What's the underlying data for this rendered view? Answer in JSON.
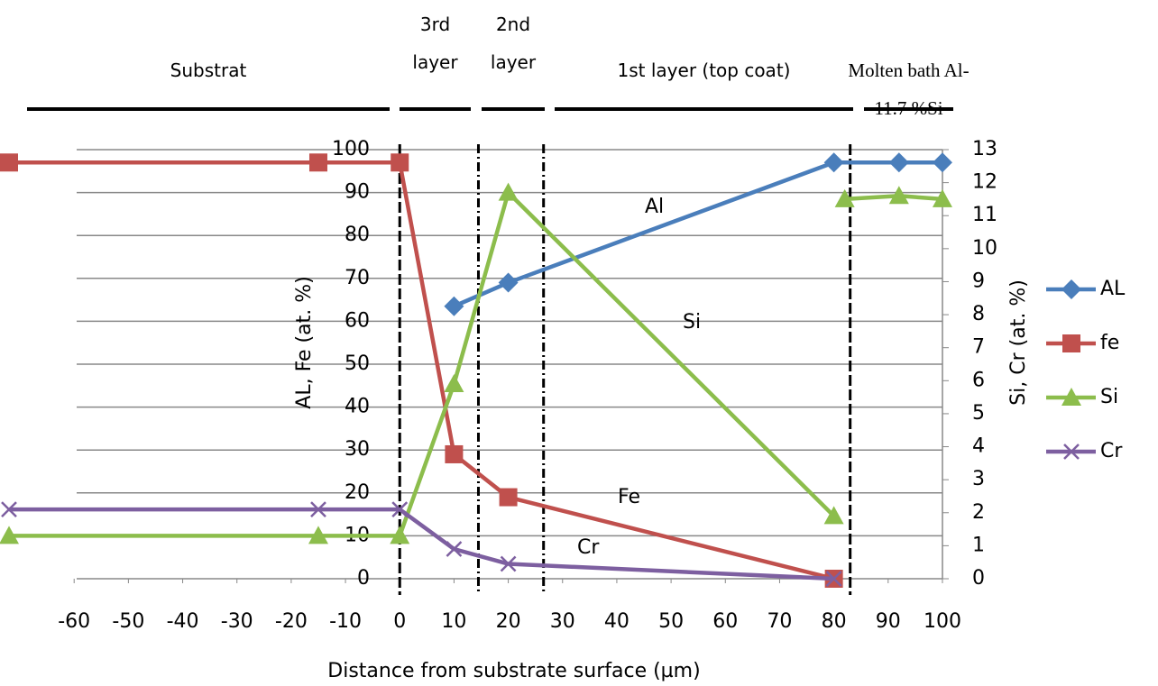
{
  "chart_data": {
    "type": "line",
    "regions": [
      "Substrat",
      "3rd layer",
      "2nd layer",
      "1st layer (top coat)",
      "Molten bath Al-11.7 %Si"
    ],
    "region_boundaries": [
      0,
      14.5,
      26.5,
      83
    ],
    "xlabel": "Distance from substrate surface (µm)",
    "ylabel": "AL, Fe (at. %)",
    "y2label": "Si, Cr (at. %)",
    "xlim": [
      -72,
      102
    ],
    "xticks": [
      -60,
      -50,
      -40,
      -30,
      -20,
      -10,
      0,
      10,
      20,
      30,
      40,
      50,
      60,
      70,
      80,
      90,
      100
    ],
    "ylim": [
      0,
      100
    ],
    "yticks": [
      0,
      10,
      20,
      30,
      40,
      50,
      60,
      70,
      80,
      90,
      100
    ],
    "y2lim": [
      0,
      13
    ],
    "y2ticks": [
      0,
      1,
      2,
      3,
      4,
      5,
      6,
      7,
      8,
      9,
      10,
      11,
      12,
      13
    ],
    "grid": true,
    "legend": "right",
    "annotations": [
      "Al",
      "Si",
      "Fe",
      "Cr"
    ],
    "series": [
      {
        "name": "AL",
        "color": "#4a7ebb",
        "marker": "diamond",
        "x": [
          10,
          20,
          80,
          92,
          100
        ],
        "values": [
          63.5,
          69,
          97,
          97,
          97
        ]
      },
      {
        "name": "fe",
        "color": "#c0504d",
        "marker": "square",
        "x": [
          -72,
          -15,
          0,
          10,
          20,
          80
        ],
        "values": [
          97,
          97,
          97,
          29,
          19,
          0
        ]
      },
      {
        "name": "Si",
        "color": "#8cbd4c",
        "marker": "triangle",
        "axis": "y2",
        "x": [
          -72,
          -15,
          0,
          10,
          20,
          80,
          82,
          82,
          92,
          100
        ],
        "values": [
          1.3,
          1.3,
          1.3,
          5.9,
          11.7,
          1.9,
          null,
          11.5,
          11.6,
          11.5
        ]
      },
      {
        "name": "Cr",
        "color": "#7d5fa0",
        "marker": "x",
        "axis": "y2",
        "x": [
          -72,
          -15,
          0,
          10,
          20,
          80
        ],
        "values": [
          2.1,
          2.1,
          2.1,
          0.9,
          0.45,
          0
        ]
      }
    ]
  }
}
